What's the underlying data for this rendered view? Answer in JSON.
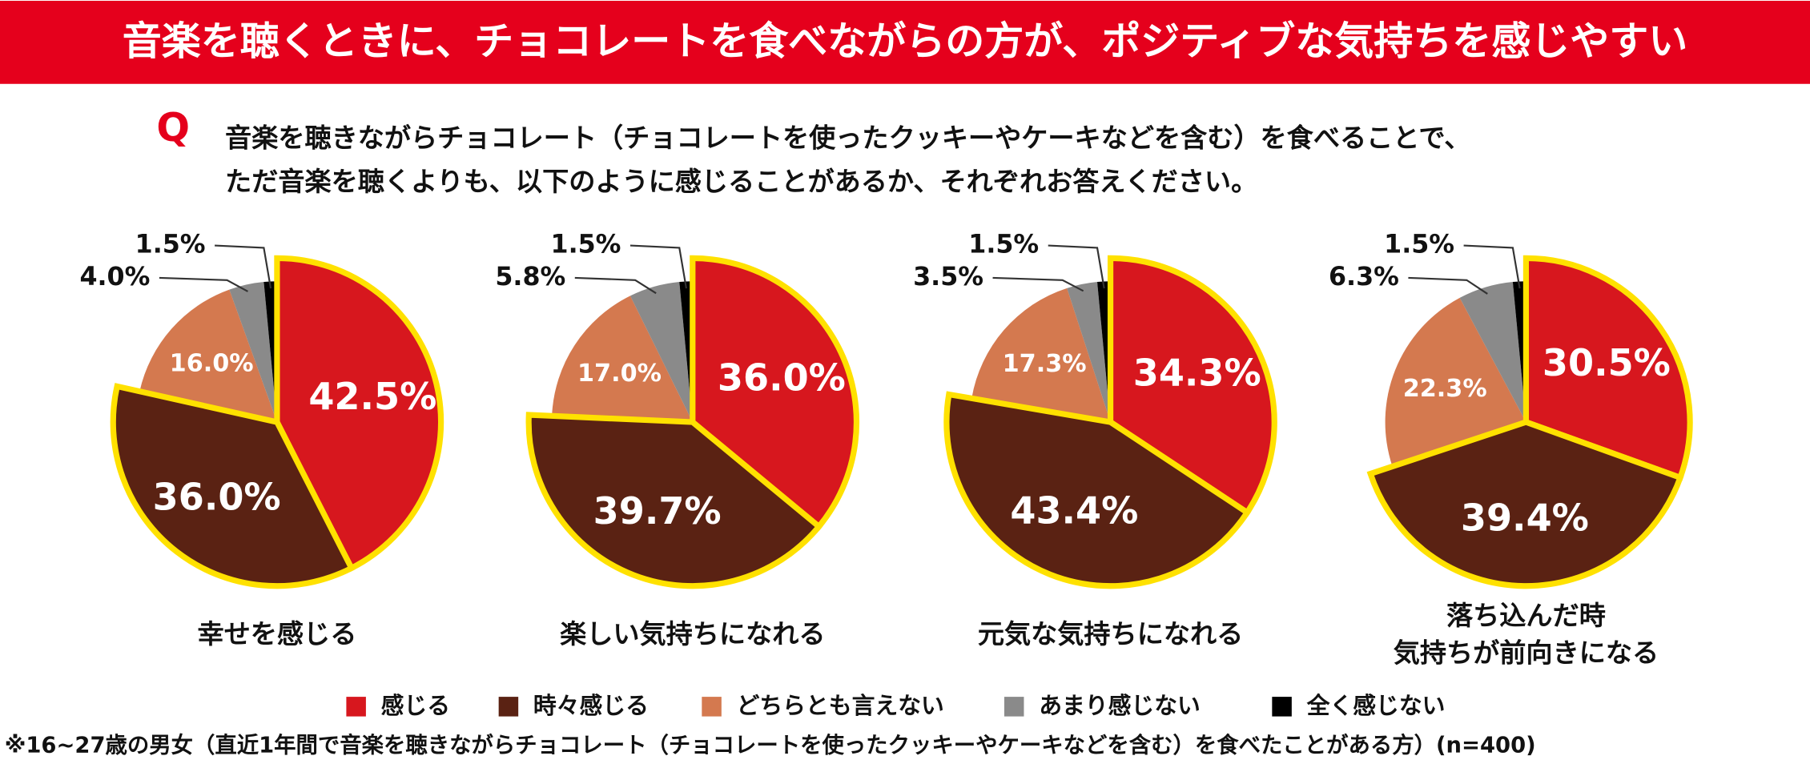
{
  "header": {
    "title": "音楽を聴くときに、チョコレートを食べながらの方が、ポジティブな気持ちを感じやすい"
  },
  "question": {
    "mark": "Q",
    "lines": [
      "音楽を聴きながらチョコレート（チョコレートを使ったクッキーやケーキなどを含む）を食べることで、",
      "ただ音楽を聴くよりも、以下のように感じることがあるか、それぞれお答えください。"
    ]
  },
  "note": "※16~27歳の男女（直近1年間で音楽を聴きながらチョコレート（チョコレートを使ったクッキーやケーキなどを含む）を食べたことがある方）(n=400)",
  "chart_data": [
    {
      "type": "pie",
      "title": [
        "幸せを感じる"
      ],
      "categories": [
        "感じる",
        "時々感じる",
        "どちらとも言えない",
        "あまり感じない",
        "全く感じない"
      ],
      "values": [
        42.5,
        36.0,
        16.0,
        4.0,
        1.5
      ],
      "value_labels": [
        "42.5%",
        "36.0%",
        "16.0%",
        "4.0%",
        "1.5%"
      ],
      "colors": [
        "#d7171e",
        "#5a2213",
        "#d4794f",
        "#8a8a8a",
        "#000000"
      ]
    },
    {
      "type": "pie",
      "title": [
        "楽しい気持ちになれる"
      ],
      "categories": [
        "感じる",
        "時々感じる",
        "どちらとも言えない",
        "あまり感じない",
        "全く感じない"
      ],
      "values": [
        36.0,
        39.7,
        17.0,
        5.8,
        1.5
      ],
      "value_labels": [
        "36.0%",
        "39.7%",
        "17.0%",
        "5.8%",
        "1.5%"
      ],
      "colors": [
        "#d7171e",
        "#5a2213",
        "#d4794f",
        "#8a8a8a",
        "#000000"
      ]
    },
    {
      "type": "pie",
      "title": [
        "元気な気持ちになれる"
      ],
      "categories": [
        "感じる",
        "時々感じる",
        "どちらとも言えない",
        "あまり感じない",
        "全く感じない"
      ],
      "values": [
        34.3,
        43.4,
        17.3,
        3.5,
        1.5
      ],
      "value_labels": [
        "34.3%",
        "43.4%",
        "17.3%",
        "3.5%",
        "1.5%"
      ],
      "colors": [
        "#d7171e",
        "#5a2213",
        "#d4794f",
        "#8a8a8a",
        "#000000"
      ]
    },
    {
      "type": "pie",
      "title": [
        "落ち込んだ時",
        "気持ちが前向きになる"
      ],
      "categories": [
        "感じる",
        "時々感じる",
        "どちらとも言えない",
        "あまり感じない",
        "全く感じない"
      ],
      "values": [
        30.5,
        39.4,
        22.3,
        6.3,
        1.5
      ],
      "value_labels": [
        "30.5%",
        "39.4%",
        "22.3%",
        "6.3%",
        "1.5%"
      ],
      "colors": [
        "#d7171e",
        "#5a2213",
        "#d4794f",
        "#8a8a8a",
        "#000000"
      ]
    }
  ]
}
